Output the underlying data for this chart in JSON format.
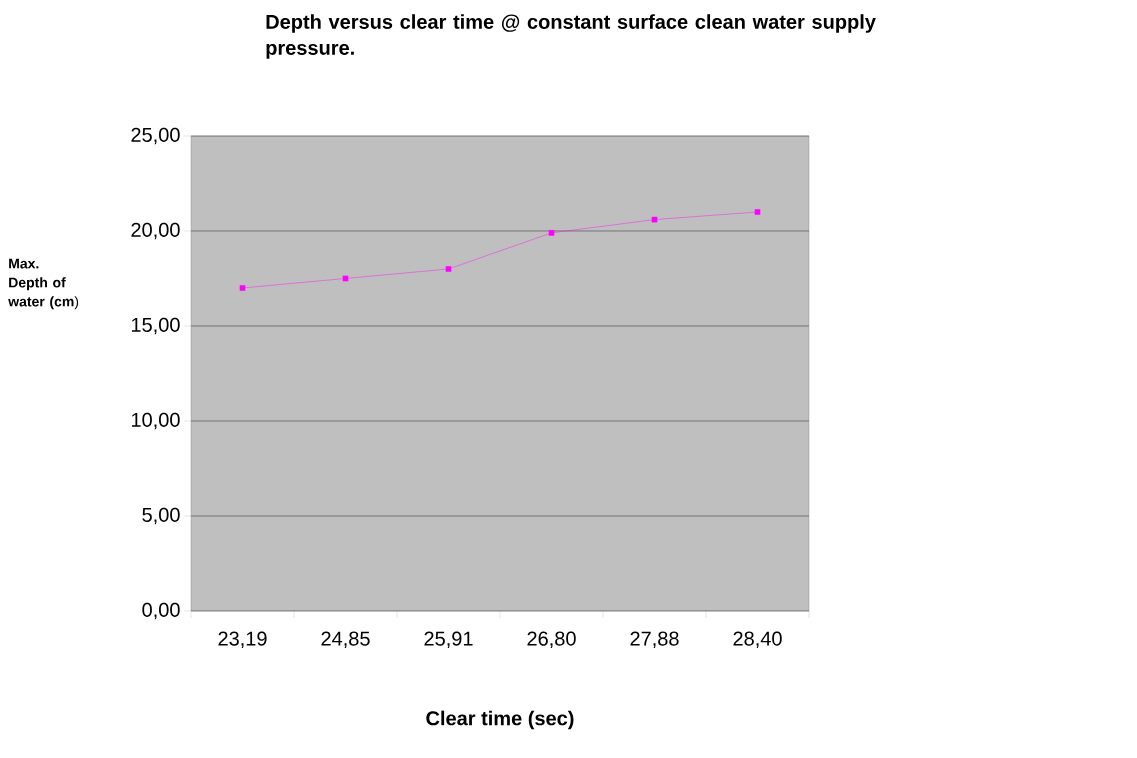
{
  "chart_data": {
    "type": "line",
    "title": "Depth versus clear time @ constant surface clean water supply pressure.",
    "xlabel": "Clear time (sec)",
    "ylabel": "**Max. Depth of water (cm**)",
    "categories": [
      "23,19",
      "24,85",
      "25,91",
      "26,80",
      "27,88",
      "28,40"
    ],
    "series": [
      {
        "color": "#ff00ff",
        "values": [
          17.0,
          17.5,
          18.0,
          19.9,
          20.6,
          21.0
        ]
      }
    ],
    "ylim": [
      0,
      25
    ],
    "yticks": [
      {
        "value": 0,
        "label": "0,00"
      },
      {
        "value": 5,
        "label": "5,00"
      },
      {
        "value": 10,
        "label": "10,00"
      },
      {
        "value": 15,
        "label": "15,00"
      },
      {
        "value": 20,
        "label": "20,00"
      },
      {
        "value": 25,
        "label": "25,00"
      }
    ],
    "grid": "y",
    "marker": "square",
    "line_style": "solid"
  }
}
